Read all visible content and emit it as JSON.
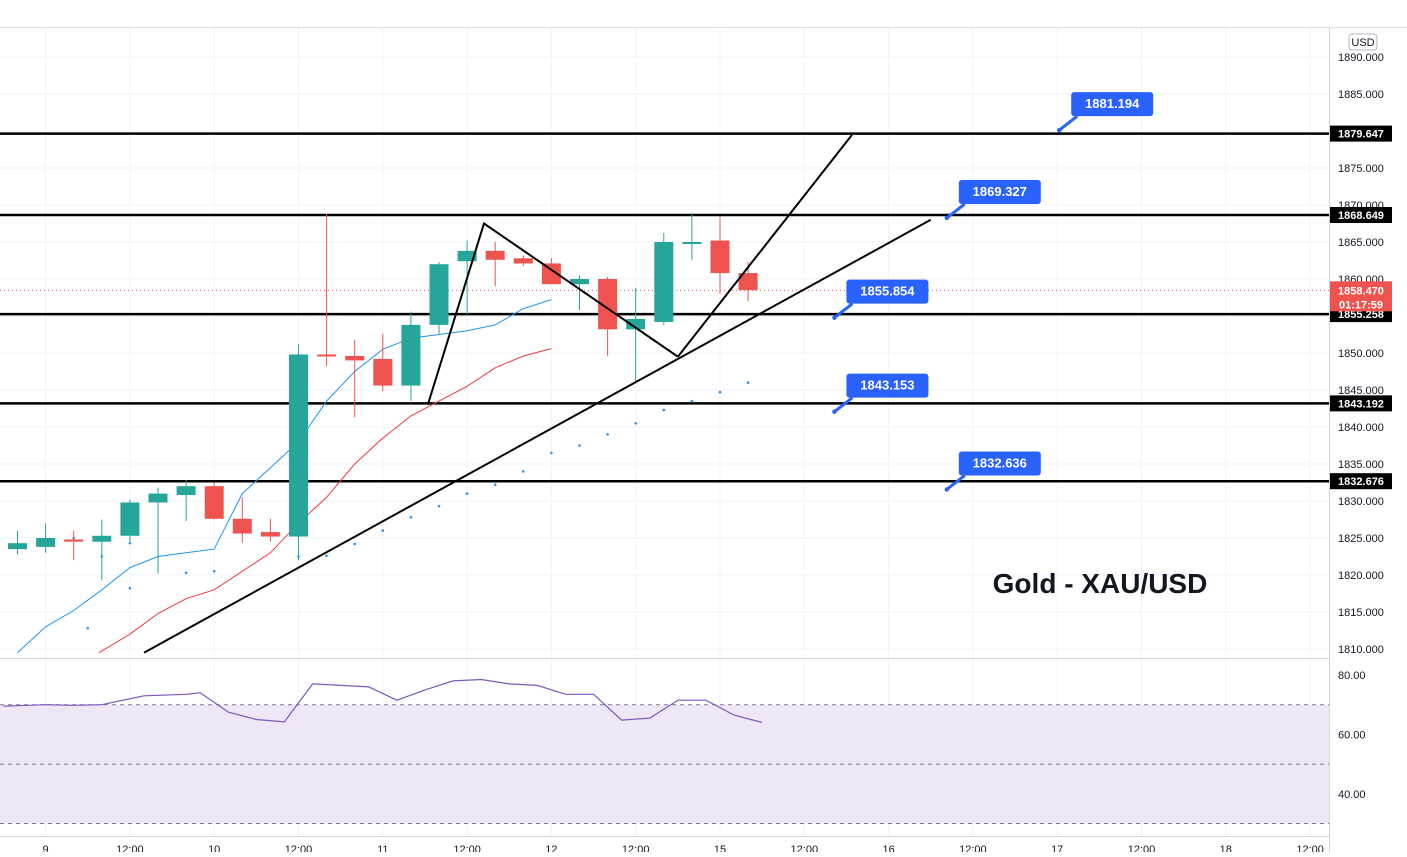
{
  "chart_data": {
    "type": "candlestick",
    "title": "Gold - XAU/USD",
    "currency_label": "USD",
    "colors": {
      "up": "#26a69a",
      "down": "#ef5350",
      "ma_fast": "#2196f3",
      "ma_slow": "#f23645",
      "rsi": "#7e57c2",
      "rsi_band": "#ede7f6",
      "callout": "#2962ff",
      "level": "#000000",
      "price_badge": "#ef5350",
      "level_badge": "#000000"
    },
    "ylim": [
      1808.5,
      1892.5
    ],
    "y_ticks": [
      "1890.000",
      "1885.000",
      "1880.000",
      "1875.000",
      "1870.000",
      "1865.000",
      "1860.000",
      "1855.000",
      "1850.000",
      "1845.000",
      "1840.000",
      "1835.000",
      "1830.000",
      "1825.000",
      "1820.000",
      "1815.000",
      "1810.000"
    ],
    "y_tick_values": [
      1890,
      1885,
      1880,
      1875,
      1870,
      1865,
      1860,
      1855,
      1850,
      1845,
      1840,
      1835,
      1830,
      1825,
      1820,
      1815,
      1810
    ],
    "x_ticks": [
      {
        "label": "9",
        "bar": 1
      },
      {
        "label": "12:00",
        "bar": 4
      },
      {
        "label": "10",
        "bar": 7
      },
      {
        "label": "12:00",
        "bar": 10
      },
      {
        "label": "11",
        "bar": 13
      },
      {
        "label": "12:00",
        "bar": 16
      },
      {
        "label": "12",
        "bar": 19
      },
      {
        "label": "12:00",
        "bar": 22
      },
      {
        "label": "15",
        "bar": 25
      },
      {
        "label": "12:00",
        "bar": 28
      },
      {
        "label": "16",
        "bar": 31
      },
      {
        "label": "12:00",
        "bar": 34
      },
      {
        "label": "17",
        "bar": 37
      },
      {
        "label": "12:00",
        "bar": 40
      },
      {
        "label": "18",
        "bar": 43
      },
      {
        "label": "12:00",
        "bar": 46
      }
    ],
    "candles": [
      {
        "o": 1823.5,
        "h": 1826.0,
        "l": 1822.8,
        "c": 1824.3
      },
      {
        "o": 1823.8,
        "h": 1827.0,
        "l": 1823.0,
        "c": 1825.0
      },
      {
        "o": 1824.8,
        "h": 1826.0,
        "l": 1822.0,
        "c": 1824.5
      },
      {
        "o": 1824.5,
        "h": 1827.5,
        "l": 1819.3,
        "c": 1825.3
      },
      {
        "o": 1825.3,
        "h": 1830.2,
        "l": 1824.5,
        "c": 1829.8
      },
      {
        "o": 1829.8,
        "h": 1831.8,
        "l": 1820.2,
        "c": 1831.0
      },
      {
        "o": 1830.8,
        "h": 1832.8,
        "l": 1827.3,
        "c": 1832.0
      },
      {
        "o": 1832.0,
        "h": 1832.5,
        "l": 1827.5,
        "c": 1827.6
      },
      {
        "o": 1827.6,
        "h": 1830.5,
        "l": 1824.4,
        "c": 1825.6
      },
      {
        "o": 1825.8,
        "h": 1827.6,
        "l": 1824.5,
        "c": 1825.2
      },
      {
        "o": 1825.2,
        "h": 1851.2,
        "l": 1822.0,
        "c": 1849.8
      },
      {
        "o": 1849.8,
        "h": 1868.8,
        "l": 1848.2,
        "c": 1849.6
      },
      {
        "o": 1849.6,
        "h": 1851.8,
        "l": 1841.3,
        "c": 1849.0
      },
      {
        "o": 1849.2,
        "h": 1852.6,
        "l": 1844.8,
        "c": 1845.6
      },
      {
        "o": 1845.6,
        "h": 1855.6,
        "l": 1843.5,
        "c": 1853.8
      },
      {
        "o": 1853.8,
        "h": 1862.3,
        "l": 1852.6,
        "c": 1862.0
      },
      {
        "o": 1862.4,
        "h": 1865.2,
        "l": 1855.2,
        "c": 1863.8
      },
      {
        "o": 1863.8,
        "h": 1865.0,
        "l": 1859.0,
        "c": 1862.6
      },
      {
        "o": 1862.8,
        "h": 1863.2,
        "l": 1861.8,
        "c": 1862.1
      },
      {
        "o": 1862.1,
        "h": 1862.8,
        "l": 1859.3,
        "c": 1859.3
      },
      {
        "o": 1859.3,
        "h": 1860.5,
        "l": 1855.8,
        "c": 1860.0
      },
      {
        "o": 1860.0,
        "h": 1860.3,
        "l": 1849.6,
        "c": 1853.2
      },
      {
        "o": 1853.2,
        "h": 1858.8,
        "l": 1846.0,
        "c": 1854.6
      },
      {
        "o": 1854.2,
        "h": 1866.2,
        "l": 1853.8,
        "c": 1865.0
      },
      {
        "o": 1865.0,
        "h": 1868.9,
        "l": 1862.6,
        "c": 1865.0
      },
      {
        "o": 1865.2,
        "h": 1868.5,
        "l": 1858.0,
        "c": 1860.8
      },
      {
        "o": 1860.8,
        "h": 1862.3,
        "l": 1857.0,
        "c": 1858.5
      }
    ],
    "ma_fast": [
      1809.5,
      1813.0,
      1815.2,
      1818.0,
      1821.0,
      1822.5,
      1823.0,
      1823.5,
      1831.0,
      1834.5,
      1838.0,
      1843.5,
      1847.5,
      1850.5,
      1852.0,
      1852.5,
      1853.0,
      1853.8,
      1856.0,
      1857.2
    ],
    "ma_fast_bars": [
      0,
      1,
      2,
      3,
      4,
      5,
      6,
      7,
      8,
      9,
      10,
      11,
      12,
      13,
      14,
      15,
      16,
      17,
      18,
      19
    ],
    "ma_slow": [
      1809.5,
      1812.0,
      1814.8,
      1816.8,
      1818.0,
      1823.0,
      1827.0,
      1830.5,
      1835.0,
      1838.5,
      1841.5,
      1843.5,
      1845.5,
      1848.0,
      1849.6,
      1850.6
    ],
    "ma_slow_bars": [
      2.9,
      4,
      5,
      6,
      7,
      9,
      10,
      11,
      12,
      13,
      14,
      15,
      16,
      17,
      18,
      19
    ],
    "sar": [
      1825.0,
      1829.5,
      1822.5,
      1824.3,
      1812.8,
      1818.2,
      1820.3,
      1820.5,
      1822.5,
      1822.6,
      1824.2,
      1826.0,
      1827.8,
      1829.3,
      1831.0,
      1832.2,
      1834.0,
      1836.5,
      1837.5,
      1839.0,
      1840.5,
      1842.3,
      1843.5,
      1844.7,
      1846.0
    ],
    "sar_bars": [
      2,
      4,
      3,
      4,
      2.5,
      4,
      6,
      7,
      10,
      11,
      12,
      13,
      14,
      15,
      16,
      17,
      18,
      19,
      20,
      21,
      22,
      23,
      24,
      25,
      26
    ],
    "trendline_support": {
      "from": {
        "bar": 4.5,
        "y": 1809.5
      },
      "to": {
        "bar": 32.5,
        "y": 1868.0
      }
    },
    "trendline_channel": {
      "from": {
        "bar": 23.5,
        "y": 1849.5
      },
      "to": {
        "bar": 29.7,
        "y": 1879.5
      }
    },
    "zigzag": [
      {
        "bar": 14.6,
        "y": 1843.0
      },
      {
        "bar": 16.6,
        "y": 1867.5
      },
      {
        "bar": 23.5,
        "y": 1849.5
      }
    ],
    "levels": [
      {
        "value": 1879.647,
        "label": "1879.647"
      },
      {
        "value": 1868.649,
        "label": "1868.649"
      },
      {
        "value": 1855.258,
        "label": "1855.258"
      },
      {
        "value": 1843.192,
        "label": "1843.192"
      },
      {
        "value": 1832.676,
        "label": "1832.676"
      }
    ],
    "callouts": [
      {
        "label": "1881.194",
        "value": 1881.194,
        "bar": 37
      },
      {
        "label": "1869.327",
        "value": 1869.327,
        "bar": 33
      },
      {
        "label": "1855.854",
        "value": 1855.854,
        "bar": 29
      },
      {
        "label": "1843.153",
        "value": 1843.153,
        "bar": 29
      },
      {
        "label": "1832.636",
        "value": 1832.636,
        "bar": 33
      }
    ],
    "current_price": {
      "value": 1858.47,
      "label": "1858.470",
      "countdown": "01:17:59"
    },
    "rsi": {
      "values": [
        69.5,
        70.0,
        69.8,
        70.0,
        73.0,
        73.5,
        74.0,
        67.5,
        65.0,
        64.2,
        77.0,
        76.5,
        76.0,
        71.5,
        75.0,
        78.0,
        78.5,
        77.0,
        76.5,
        73.5,
        73.5,
        64.8,
        65.5,
        71.5,
        71.5,
        66.5,
        64.0
      ],
      "bars": [
        -0.5,
        1,
        2,
        3,
        4.5,
        6,
        6.5,
        7.5,
        8.5,
        9.5,
        10.5,
        11.5,
        12.5,
        13.5,
        14.5,
        15.5,
        16.5,
        17.5,
        18.5,
        19.5,
        20.5,
        21.5,
        22.5,
        23.5,
        24.5,
        25.5,
        26.5
      ],
      "ylim": [
        30,
        85
      ],
      "ticks": [
        "80.00",
        "60.00",
        "40.00"
      ],
      "tick_values": [
        80,
        60,
        40
      ],
      "overbought": 70,
      "oversold": 30,
      "middle": 50
    }
  }
}
